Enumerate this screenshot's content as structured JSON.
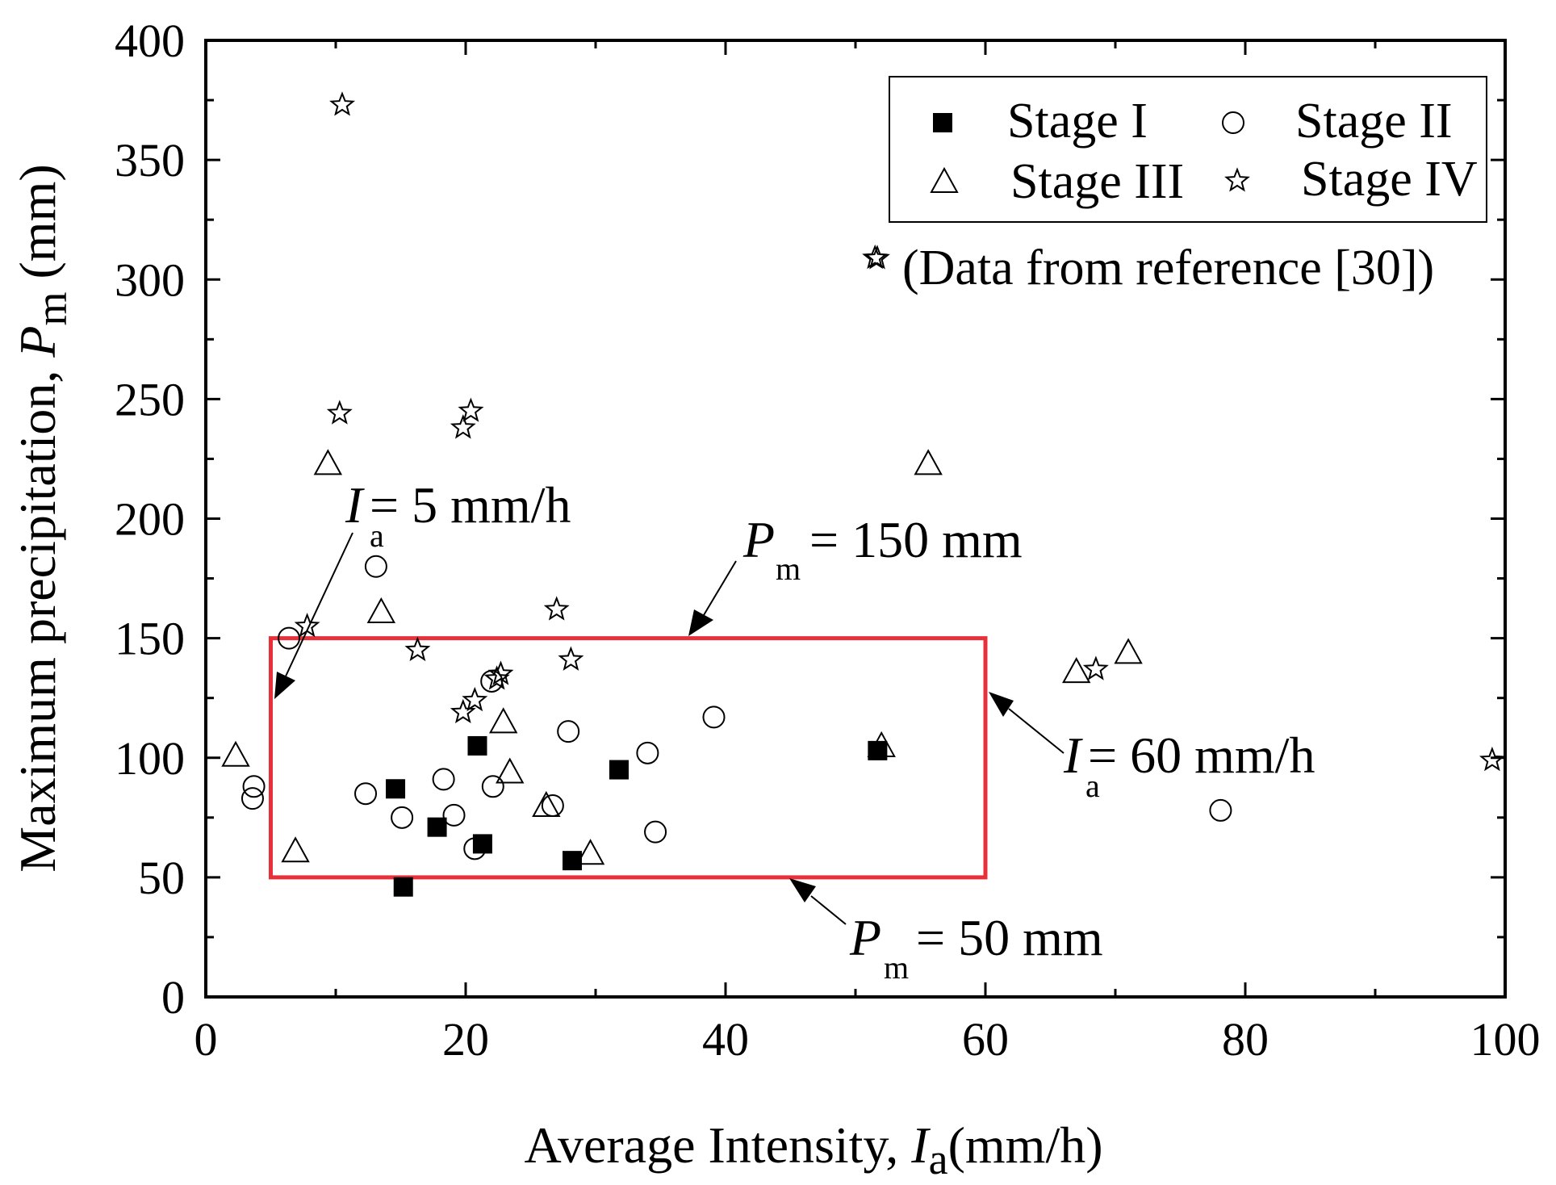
{
  "chart_data": {
    "type": "scatter",
    "title": "",
    "xlabel": "Average Intensity, ",
    "xlabel_var": "I",
    "xlabel_sub": "a",
    "xlabel_unit": "(mm/h)",
    "ylabel": "Maximum precipitation, ",
    "ylabel_var": "P",
    "ylabel_sub": "m",
    "ylabel_unit": " (mm)",
    "xlim": [
      0,
      100
    ],
    "ylim": [
      0,
      400
    ],
    "xticks": [
      0,
      20,
      40,
      60,
      80,
      100
    ],
    "yticks": [
      0,
      50,
      100,
      150,
      200,
      250,
      300,
      350,
      400
    ],
    "legend": {
      "placement": "top-right",
      "entries": [
        "Stage I",
        "Stage II",
        "Stage III",
        "Stage IV"
      ]
    },
    "reference_note": "(Data from reference [30])",
    "series": [
      {
        "name": "Stage I",
        "marker": "filled-square",
        "points": [
          [
            14.6,
            87
          ],
          [
            15.2,
            46
          ],
          [
            17.8,
            71
          ],
          [
            20.9,
            105
          ],
          [
            21.3,
            64
          ],
          [
            28.2,
            57
          ],
          [
            31.8,
            95
          ],
          [
            51.7,
            103
          ]
        ]
      },
      {
        "name": "Stage II",
        "marker": "open-circle",
        "points": [
          [
            3.7,
            88
          ],
          [
            3.6,
            83
          ],
          [
            6.4,
            150
          ],
          [
            12.3,
            85
          ],
          [
            13.1,
            180
          ],
          [
            15.1,
            75
          ],
          [
            18.3,
            91
          ],
          [
            19.1,
            76
          ],
          [
            20.7,
            62
          ],
          [
            22.0,
            132
          ],
          [
            22.1,
            88
          ],
          [
            26.7,
            80
          ],
          [
            27.9,
            111
          ],
          [
            34.0,
            102
          ],
          [
            34.6,
            69
          ],
          [
            39.1,
            117
          ],
          [
            78.1,
            78
          ]
        ]
      },
      {
        "name": "Stage III",
        "marker": "open-triangle",
        "points": [
          [
            2.3,
            101
          ],
          [
            6.9,
            61
          ],
          [
            9.4,
            223
          ],
          [
            13.5,
            161
          ],
          [
            22.9,
            115
          ],
          [
            23.4,
            94
          ],
          [
            26.2,
            80
          ],
          [
            29.6,
            60
          ],
          [
            52.0,
            105
          ],
          [
            55.6,
            223
          ],
          [
            67.0,
            136
          ],
          [
            71.0,
            144
          ]
        ]
      },
      {
        "name": "Stage IV",
        "marker": "open-star",
        "points": [
          [
            10.5,
            373
          ],
          [
            10.3,
            244
          ],
          [
            7.8,
            155
          ],
          [
            16.3,
            145
          ],
          [
            19.8,
            238
          ],
          [
            20.4,
            245
          ],
          [
            19.8,
            119
          ],
          [
            20.7,
            124
          ],
          [
            22.4,
            133
          ],
          [
            22.7,
            135
          ],
          [
            27.0,
            162
          ],
          [
            28.1,
            141
          ],
          [
            51.5,
            309
          ],
          [
            68.5,
            137
          ],
          [
            99.0,
            99
          ]
        ]
      }
    ],
    "threshold_box": {
      "x_min": 5,
      "x_max": 60,
      "y_min": 50,
      "y_max": 150,
      "color": "#e8303a"
    },
    "annotations": [
      {
        "var": "I",
        "sub": "a",
        "text": "= 5 mm/h"
      },
      {
        "var": "P",
        "sub": "m",
        "text": "= 150 mm"
      },
      {
        "var": "I",
        "sub": "a",
        "text": "= 60 mm/h"
      },
      {
        "var": "P",
        "sub": "m",
        "text": "= 50 mm"
      }
    ]
  }
}
